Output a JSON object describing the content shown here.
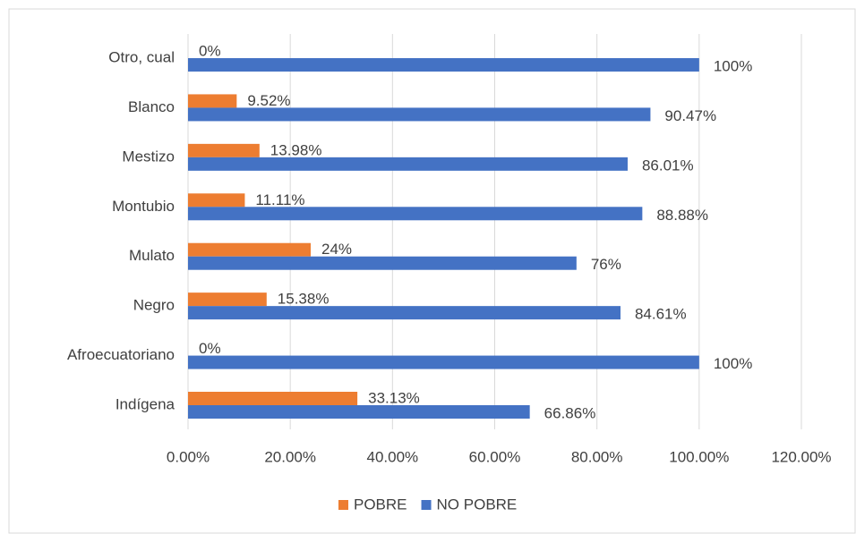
{
  "chart_data": {
    "type": "bar",
    "orientation": "horizontal",
    "categories": [
      "Indígena",
      "Afroecuatoriano",
      "Negro",
      "Mulato",
      "Montubio",
      "Mestizo",
      "Blanco",
      "Otro, cual"
    ],
    "series": [
      {
        "name": "POBRE",
        "color": "#ed7d31",
        "values": [
          33.13,
          0,
          15.38,
          24,
          11.11,
          13.98,
          9.52,
          0
        ],
        "value_labels": [
          "33.13%",
          "0%",
          "15.38%",
          "24%",
          "11.11%",
          "13.98%",
          "9.52%",
          "0%"
        ]
      },
      {
        "name": "NO POBRE",
        "color": "#4472c4",
        "values": [
          66.86,
          100,
          84.61,
          76,
          88.88,
          86.01,
          90.47,
          100
        ],
        "value_labels": [
          "66.86%",
          "100%",
          "84.61%",
          "76%",
          "88.88%",
          "86.01%",
          "90.47%",
          "100%"
        ]
      }
    ],
    "xlim": [
      0,
      120
    ],
    "xticks": [
      {
        "value": 0,
        "label": "0.00%"
      },
      {
        "value": 20,
        "label": "20.00%"
      },
      {
        "value": 40,
        "label": "40.00%"
      },
      {
        "value": 60,
        "label": "60.00%"
      },
      {
        "value": 80,
        "label": "80.00%"
      },
      {
        "value": 100,
        "label": "100.00%"
      },
      {
        "value": 120,
        "label": "120.00%"
      }
    ],
    "grid": true,
    "legend": "bottom"
  }
}
